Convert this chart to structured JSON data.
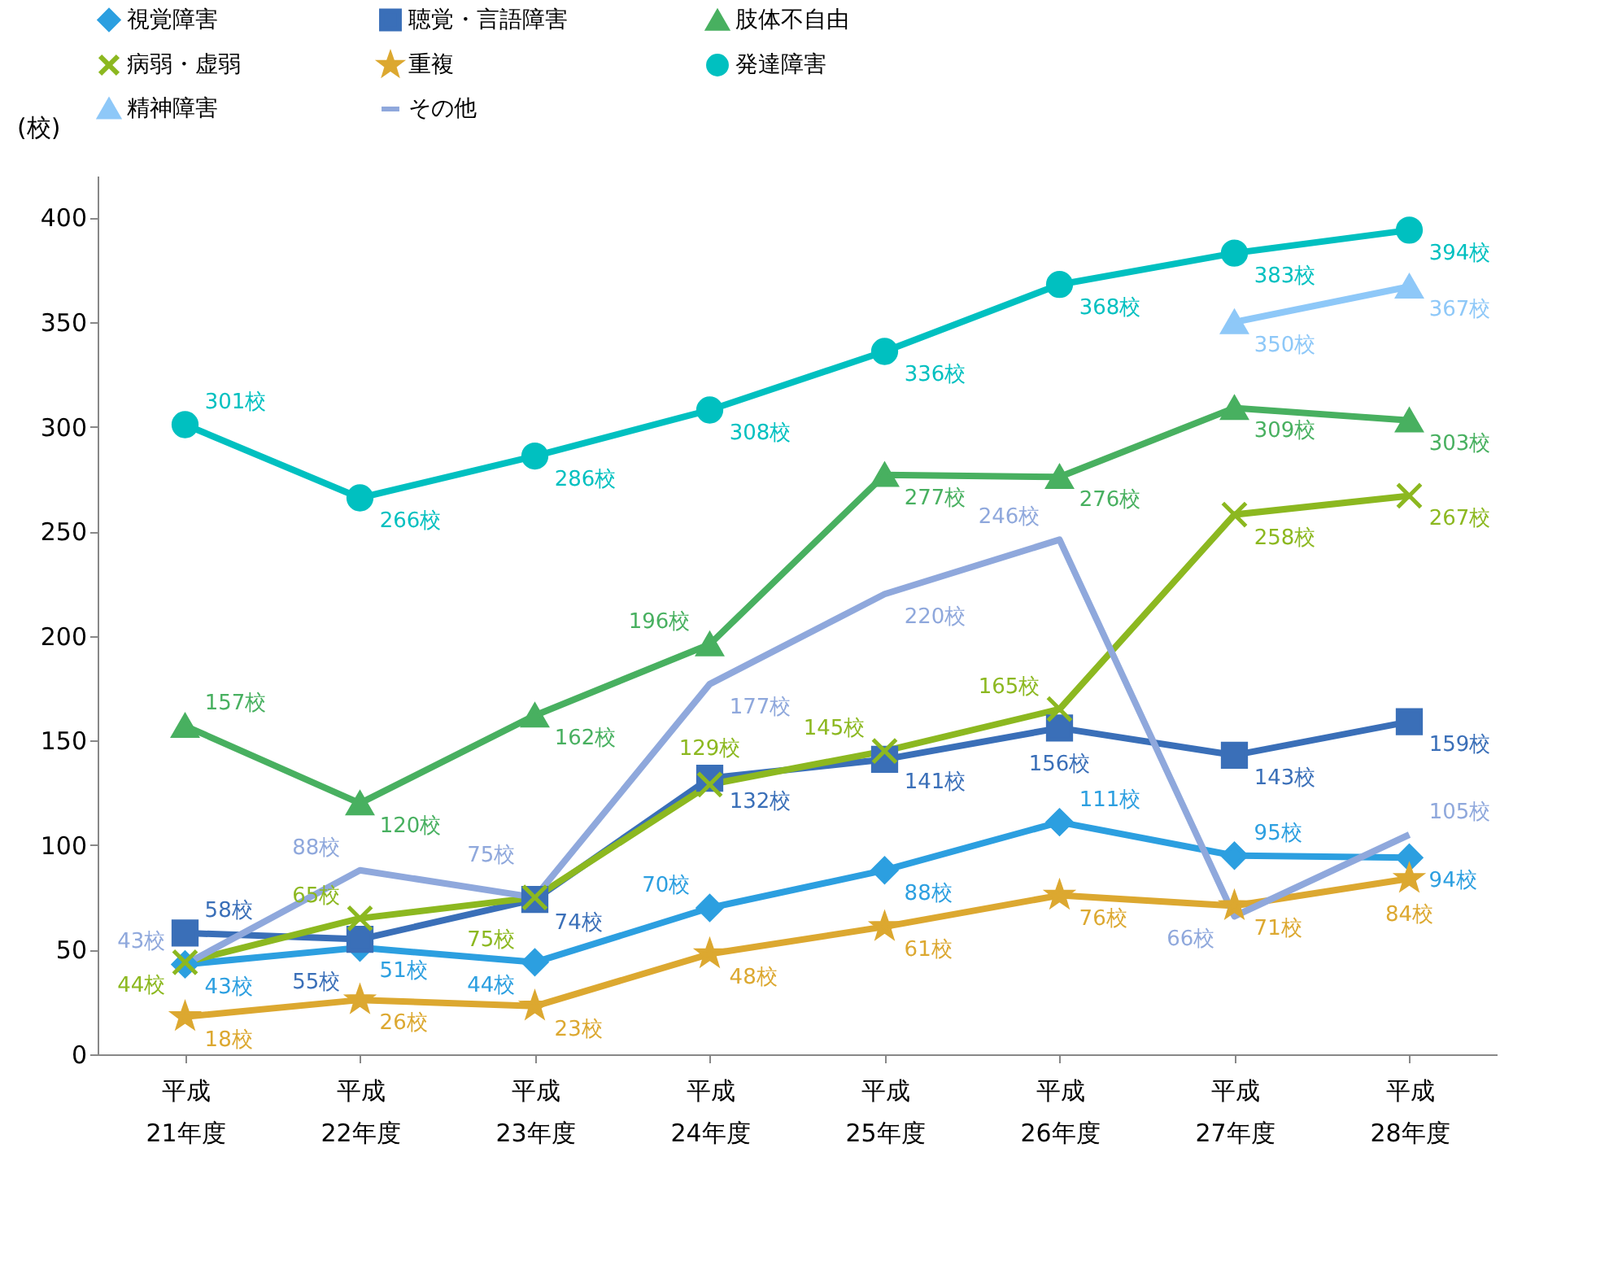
{
  "chart_data": {
    "type": "line",
    "ylabel": "(校)",
    "categories": [
      "平成\n21年度",
      "平成\n22年度",
      "平成\n23年度",
      "平成\n24年度",
      "平成\n25年度",
      "平成\n26年度",
      "平成\n27年度",
      "平成\n28年度"
    ],
    "ylim": [
      0,
      420
    ],
    "yticks": [
      0,
      50,
      100,
      150,
      200,
      250,
      300,
      350,
      400
    ],
    "grid": false,
    "legend": "top",
    "series": [
      {
        "name": "視覚障害",
        "color": "#2c9fe0",
        "marker": "diamond",
        "values": [
          43,
          51,
          44,
          70,
          88,
          111,
          95,
          94
        ],
        "value_labels": [
          "43校",
          "51校",
          "44校",
          "70校",
          "88校",
          "111校",
          "95校",
          "94校"
        ]
      },
      {
        "name": "聴覚・言語障害",
        "color": "#3a6fb8",
        "marker": "square",
        "values": [
          58,
          55,
          74,
          132,
          141,
          156,
          143,
          159
        ],
        "value_labels": [
          "58校",
          "55校",
          "74校",
          "132校",
          "141校",
          "156校",
          "143校",
          "159校"
        ]
      },
      {
        "name": "肢体不自由",
        "color": "#48b060",
        "marker": "triangle",
        "values": [
          157,
          120,
          162,
          196,
          277,
          276,
          309,
          303
        ],
        "value_labels": [
          "157校",
          "120校",
          "162校",
          "196校",
          "277校",
          "276校",
          "309校",
          "303校"
        ]
      },
      {
        "name": "病弱・虚弱",
        "color": "#8cb820",
        "marker": "cross",
        "values": [
          44,
          65,
          75,
          129,
          145,
          165,
          258,
          267
        ],
        "value_labels": [
          "44校",
          "65校",
          "75校",
          "129校",
          "145校",
          "165校",
          "258校",
          "267校"
        ]
      },
      {
        "name": "重複",
        "color": "#dca830",
        "marker": "star",
        "values": [
          18,
          26,
          23,
          48,
          61,
          76,
          71,
          84
        ],
        "value_labels": [
          "18校",
          "26校",
          "23校",
          "48校",
          "61校",
          "76校",
          "71校",
          "84校"
        ]
      },
      {
        "name": "発達障害",
        "color": "#00c0c0",
        "marker": "circle",
        "values": [
          301,
          266,
          286,
          308,
          336,
          368,
          383,
          394
        ],
        "value_labels": [
          "301校",
          "266校",
          "286校",
          "308校",
          "336校",
          "368校",
          "383校",
          "394校"
        ]
      },
      {
        "name": "精神障害",
        "color": "#8ec8f8",
        "marker": "triangle",
        "values": [
          null,
          null,
          null,
          null,
          null,
          null,
          350,
          367
        ],
        "value_labels": [
          null,
          null,
          null,
          null,
          null,
          null,
          "350校",
          "367校"
        ]
      },
      {
        "name": "その他",
        "color": "#8fa8dc",
        "marker": "none",
        "values": [
          43,
          88,
          75,
          177,
          220,
          246,
          66,
          105
        ],
        "value_labels": [
          "43校",
          "88校",
          "75校",
          "177校",
          "220校",
          "246校",
          "66校",
          "105校"
        ]
      }
    ]
  }
}
